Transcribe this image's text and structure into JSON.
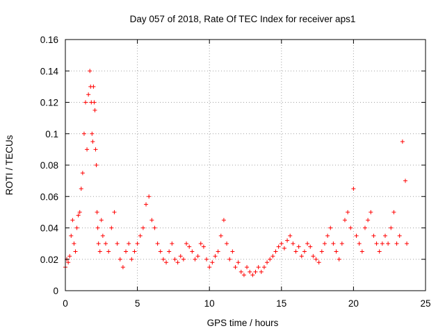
{
  "chart_data": {
    "type": "scatter",
    "title": "Day 057 of 2018, Rate Of TEC Index for receiver aps1",
    "xlabel": "GPS time / hours",
    "ylabel": "ROTI / TECUs",
    "xlim": [
      0,
      25
    ],
    "ylim": [
      0,
      0.16
    ],
    "x_ticks": [
      0,
      5,
      10,
      15,
      20,
      25
    ],
    "x_tick_labels": [
      "0",
      "5",
      "10",
      "15",
      "20",
      "25"
    ],
    "y_ticks": [
      0,
      0.02,
      0.04,
      0.06,
      0.08,
      0.1,
      0.12,
      0.14,
      0.16
    ],
    "y_tick_labels": [
      "0",
      "0.02",
      "0.04",
      "0.06",
      "0.08",
      "0.1",
      "0.12",
      "0.14",
      "0.16"
    ],
    "grid": true,
    "marker": "plus",
    "color": "#ff0000",
    "series": [
      {
        "x": [
          0.0,
          0.1,
          0.2,
          0.3,
          0.4,
          0.5,
          0.6,
          0.7,
          0.8,
          0.9,
          1.0,
          1.1,
          1.2,
          1.3,
          1.4,
          1.5,
          1.6,
          1.7,
          1.75,
          1.8,
          1.85,
          1.9,
          1.95,
          2.0,
          2.05,
          2.1,
          2.15,
          2.2,
          2.25,
          2.3,
          2.4,
          2.5,
          2.6,
          2.8,
          3.0,
          3.2,
          3.4,
          3.6,
          3.8,
          4.0,
          4.2,
          4.4,
          4.6,
          4.8,
          5.0,
          5.2,
          5.4,
          5.6,
          5.8,
          6.0,
          6.2,
          6.4,
          6.6,
          6.8,
          7.0,
          7.2,
          7.4,
          7.6,
          7.8,
          8.0,
          8.2,
          8.4,
          8.6,
          8.8,
          9.0,
          9.2,
          9.4,
          9.6,
          9.8,
          10.0,
          10.2,
          10.4,
          10.6,
          10.8,
          11.0,
          11.2,
          11.4,
          11.6,
          11.8,
          12.0,
          12.2,
          12.4,
          12.6,
          12.8,
          13.0,
          13.2,
          13.4,
          13.6,
          13.8,
          14.0,
          14.2,
          14.4,
          14.6,
          14.8,
          15.0,
          15.2,
          15.4,
          15.6,
          15.8,
          16.0,
          16.2,
          16.4,
          16.6,
          16.8,
          17.0,
          17.2,
          17.4,
          17.6,
          17.8,
          18.0,
          18.2,
          18.4,
          18.6,
          18.8,
          19.0,
          19.2,
          19.4,
          19.6,
          19.8,
          20.0,
          20.2,
          20.4,
          20.6,
          20.8,
          21.0,
          21.2,
          21.4,
          21.6,
          21.8,
          22.0,
          22.2,
          22.4,
          22.6,
          22.8,
          23.0,
          23.2,
          23.4,
          23.6,
          23.7
        ],
        "y": [
          0.015,
          0.02,
          0.018,
          0.022,
          0.035,
          0.045,
          0.03,
          0.025,
          0.04,
          0.048,
          0.05,
          0.065,
          0.075,
          0.1,
          0.12,
          0.09,
          0.125,
          0.14,
          0.13,
          0.12,
          0.1,
          0.095,
          0.13,
          0.12,
          0.115,
          0.09,
          0.08,
          0.05,
          0.04,
          0.03,
          0.025,
          0.045,
          0.035,
          0.03,
          0.025,
          0.04,
          0.05,
          0.03,
          0.02,
          0.015,
          0.025,
          0.03,
          0.02,
          0.025,
          0.03,
          0.035,
          0.04,
          0.055,
          0.06,
          0.045,
          0.04,
          0.03,
          0.025,
          0.02,
          0.018,
          0.025,
          0.03,
          0.02,
          0.018,
          0.022,
          0.02,
          0.03,
          0.028,
          0.025,
          0.02,
          0.022,
          0.03,
          0.028,
          0.02,
          0.015,
          0.018,
          0.022,
          0.025,
          0.035,
          0.045,
          0.03,
          0.02,
          0.025,
          0.015,
          0.018,
          0.012,
          0.01,
          0.015,
          0.012,
          0.01,
          0.012,
          0.015,
          0.012,
          0.015,
          0.018,
          0.02,
          0.022,
          0.025,
          0.028,
          0.03,
          0.027,
          0.032,
          0.035,
          0.03,
          0.025,
          0.028,
          0.022,
          0.025,
          0.03,
          0.028,
          0.022,
          0.02,
          0.018,
          0.025,
          0.03,
          0.035,
          0.04,
          0.03,
          0.025,
          0.02,
          0.03,
          0.045,
          0.05,
          0.04,
          0.065,
          0.035,
          0.03,
          0.025,
          0.04,
          0.045,
          0.05,
          0.035,
          0.03,
          0.025,
          0.03,
          0.035,
          0.03,
          0.04,
          0.05,
          0.03,
          0.035,
          0.095,
          0.07,
          0.03
        ]
      }
    ]
  }
}
